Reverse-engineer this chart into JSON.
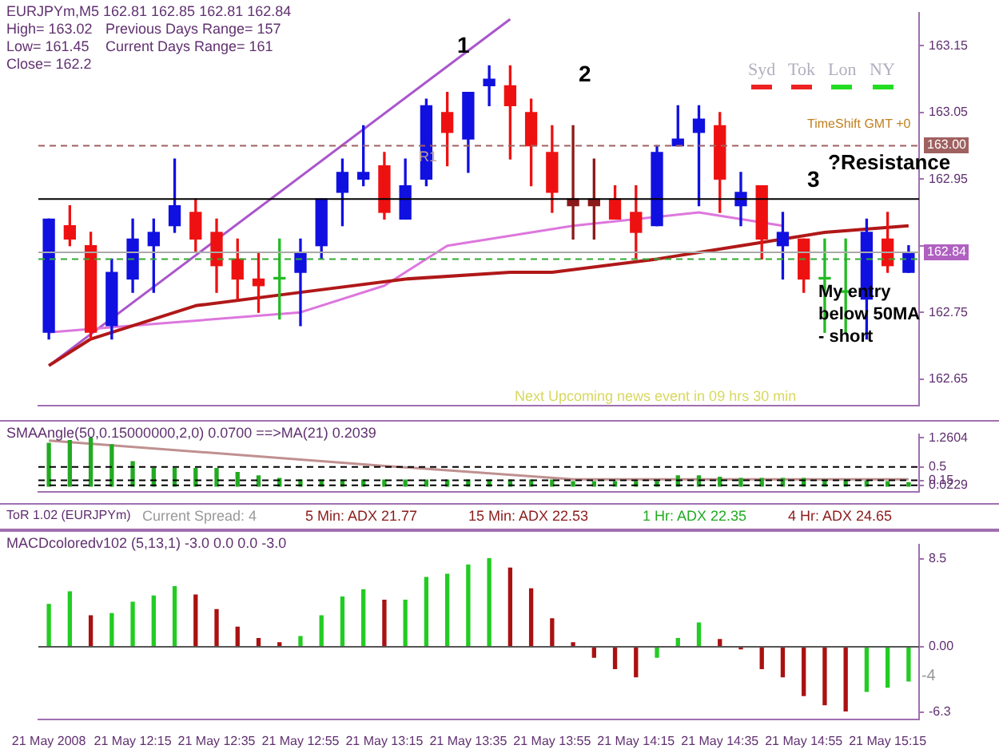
{
  "chart_data": [
    {
      "type": "candlestick",
      "categories": [
        null,
        null,
        null,
        null,
        null,
        null,
        null,
        null,
        null,
        null,
        null,
        null,
        null,
        null,
        null,
        null,
        null,
        null,
        null,
        null,
        null,
        null,
        null,
        null,
        null,
        null,
        null,
        null,
        null,
        null,
        null,
        null,
        null,
        null,
        null,
        null,
        null,
        null,
        null,
        null,
        null,
        null
      ],
      "ohlc": [
        [
          162.72,
          162.89,
          162.71,
          162.89
        ],
        [
          162.88,
          162.91,
          162.85,
          162.86
        ],
        [
          162.85,
          162.87,
          162.71,
          162.72
        ],
        [
          162.73,
          162.83,
          162.71,
          162.81
        ],
        [
          162.8,
          162.89,
          162.78,
          162.86
        ],
        [
          162.85,
          162.89,
          162.78,
          162.87
        ],
        [
          162.88,
          162.98,
          162.87,
          162.91
        ],
        [
          162.9,
          162.92,
          162.84,
          162.86
        ],
        [
          162.87,
          162.89,
          162.78,
          162.82
        ],
        [
          162.83,
          162.86,
          162.77,
          162.8
        ],
        [
          162.8,
          162.84,
          162.75,
          162.79
        ],
        [
          162.8,
          162.86,
          162.74,
          162.8
        ],
        [
          162.81,
          162.86,
          162.73,
          162.84
        ],
        [
          162.85,
          162.92,
          162.83,
          162.92
        ],
        [
          162.93,
          162.98,
          162.88,
          162.96
        ],
        [
          162.95,
          163.03,
          162.94,
          162.96
        ],
        [
          162.97,
          162.99,
          162.89,
          162.9
        ],
        [
          162.89,
          162.98,
          162.89,
          162.94
        ],
        [
          162.95,
          163.07,
          162.94,
          163.06
        ],
        [
          163.05,
          163.08,
          162.97,
          163.02
        ],
        [
          163.01,
          163.08,
          162.96,
          163.08
        ],
        [
          163.09,
          163.12,
          163.06,
          163.1
        ],
        [
          163.09,
          163.12,
          162.98,
          163.06
        ],
        [
          163.05,
          163.07,
          162.94,
          163.0
        ],
        [
          162.99,
          163.03,
          162.9,
          162.93
        ],
        [
          162.92,
          163.03,
          162.86,
          162.91
        ],
        [
          162.92,
          162.98,
          162.86,
          162.91
        ],
        [
          162.92,
          162.94,
          162.89,
          162.89
        ],
        [
          162.9,
          162.94,
          162.83,
          162.87
        ],
        [
          162.88,
          163.0,
          162.88,
          162.99
        ],
        [
          163.0,
          163.06,
          163.0,
          163.01
        ],
        [
          163.02,
          163.06,
          162.91,
          163.04
        ],
        [
          163.03,
          163.05,
          162.9,
          162.95
        ],
        [
          162.91,
          162.96,
          162.88,
          162.93
        ],
        [
          162.94,
          162.94,
          162.83,
          162.86
        ],
        [
          162.85,
          162.9,
          162.8,
          162.87
        ],
        [
          162.86,
          162.86,
          162.78,
          162.8
        ],
        [
          162.8,
          162.86,
          162.72,
          162.8
        ],
        [
          162.78,
          162.86,
          162.72,
          162.78
        ],
        [
          162.77,
          162.89,
          162.71,
          162.87
        ],
        [
          162.86,
          162.9,
          162.81,
          162.82
        ],
        [
          162.81,
          162.85,
          162.81,
          162.84
        ]
      ],
      "colors": [
        "#1010e0",
        "#ee1111",
        "#ee1111",
        "#1010e0",
        "#1010e0",
        "#1010e0",
        "#1010e0",
        "#ee1111",
        "#ee1111",
        "#ee1111",
        "#ee1111",
        "#22bb22",
        "#1010e0",
        "#1010e0",
        "#1010e0",
        "#1010e0",
        "#ee1111",
        "#1010e0",
        "#1010e0",
        "#ee1111",
        "#1010e0",
        "#1010e0",
        "#ee1111",
        "#ee1111",
        "#ee1111",
        "#8b1a1a",
        "#8b1a1a",
        "#ee1111",
        "#ee1111",
        "#1010e0",
        "#1010e0",
        "#1010e0",
        "#ee1111",
        "#1010e0",
        "#ee1111",
        "#1010e0",
        "#ee1111",
        "#22bb22",
        "#22bb22",
        "#1010e0",
        "#ee1111",
        "#1010e0"
      ],
      "series": [
        {
          "type": "line",
          "color": "#b01818",
          "values": [
            162.67,
            null,
            162.71,
            null,
            null,
            null,
            null,
            162.76,
            null,
            null,
            null,
            null,
            162.78,
            null,
            null,
            null,
            null,
            162.8,
            null,
            null,
            null,
            null,
            162.81,
            null,
            162.81,
            null,
            null,
            null,
            null,
            162.83,
            null,
            null,
            null,
            162.85,
            null,
            null,
            null,
            162.87,
            null,
            null,
            null,
            162.88
          ]
        },
        {
          "type": "line",
          "color": "#dd77dd",
          "values": [
            162.72,
            null,
            null,
            null,
            162.73,
            null,
            null,
            null,
            null,
            null,
            null,
            null,
            162.75,
            null,
            null,
            null,
            162.79,
            null,
            null,
            162.85,
            null,
            null,
            null,
            null,
            null,
            162.88,
            null,
            null,
            null,
            null,
            null,
            162.9,
            null,
            null,
            null,
            162.88,
            null,
            null,
            null,
            null,
            null,
            null
          ]
        },
        {
          "type": "line",
          "color": "#aa55cc",
          "values": [
            162.67,
            null,
            null,
            null,
            null,
            null,
            null,
            null,
            null,
            null,
            null,
            null,
            null,
            null,
            null,
            null,
            null,
            null,
            null,
            null,
            null,
            null,
            163.19,
            null,
            null,
            null,
            null,
            null,
            null,
            null,
            null,
            null,
            null,
            null,
            null,
            null,
            null,
            null,
            null,
            null,
            null,
            null
          ]
        }
      ],
      "ylim": [
        162.61,
        163.2
      ],
      "yticks": [
        162.65,
        162.75,
        {
          "value": 162.85,
          "label": null
        },
        162.95,
        163.05,
        163.15
      ],
      "tick_labels": "y",
      "ref_lines": [
        {
          "axis": "y",
          "value": 163.0,
          "label": "163.00",
          "color": "#a06060",
          "line_style": "dashed"
        },
        {
          "axis": "y",
          "value": 162.84,
          "label": "162.84",
          "color": "#aaaaaa",
          "line_style": "solid"
        },
        {
          "axis": "y",
          "value": 162.92,
          "label": null,
          "color": "#000000",
          "line_style": "solid"
        },
        {
          "axis": "y",
          "value": 162.83,
          "label": null,
          "color": "#33aa33",
          "line_style": "dashed"
        }
      ],
      "annotations": [
        "EURJPYm,M5  162.81 162.85 162.81 162.84",
        "High= 163.02",
        "Low= 161.45",
        "Close= 162.2",
        "Previous Days Range= 157",
        "Current Days Range= 161",
        "1",
        "2",
        "3",
        "?Resistance",
        "My entry below 50MA - short",
        "Syd",
        "Tok",
        "Lon",
        "NY",
        "TimeShift GMT +0",
        "R1",
        "Next Upcoming news event in 09 hrs 30 min"
      ]
    },
    {
      "type": "bar",
      "title": "SMAAngle(50,0.15000000,2,0) 0.0700 ==>MA(21) 0.2039",
      "categories": [
        null,
        null,
        null,
        null,
        null,
        null,
        null,
        null,
        null,
        null,
        null,
        null,
        null,
        null,
        null,
        null,
        null,
        null,
        null,
        null,
        null,
        null,
        null,
        null,
        null,
        null,
        null,
        null,
        null,
        null,
        null,
        null,
        null,
        null,
        null,
        null,
        null,
        null,
        null,
        null,
        null,
        null
      ],
      "series": [
        {
          "type": "bar",
          "color": "#22aa22",
          "values": [
            1.12,
            1.19,
            1.26,
            1.08,
            0.64,
            0.46,
            0.46,
            0.46,
            0.46,
            0.36,
            0.27,
            0.2,
            0.16,
            0.16,
            0.16,
            0.16,
            0.16,
            0.16,
            0.16,
            0.16,
            0.16,
            0.16,
            0.16,
            0.16,
            0.16,
            0.12,
            0.12,
            0.12,
            0.12,
            0.12,
            0.27,
            0.27,
            0.23,
            0.2,
            0.2,
            0.2,
            0.2,
            0.16,
            0.16,
            0.13,
            0.12,
            0.09
          ]
        },
        {
          "type": "line",
          "color": "#c09090",
          "values": [
            1.19,
            null,
            null,
            null,
            null,
            null,
            null,
            null,
            null,
            null,
            null,
            null,
            null,
            null,
            null,
            null,
            0.53,
            null,
            null,
            null,
            null,
            null,
            null,
            null,
            null,
            0.18,
            null,
            null,
            null,
            null,
            null,
            null,
            null,
            null,
            null,
            null,
            null,
            null,
            null,
            null,
            null,
            0.18
          ]
        }
      ],
      "ylim": [
        -0.15,
        1.36
      ],
      "yticks": [
        {
          "value": 0.0229,
          "label": "0.0229"
        },
        0.15,
        0.5,
        1.2604
      ],
      "tick_labels": "y",
      "ref_lines": [
        {
          "axis": "y",
          "value": 0.5,
          "label": null,
          "color": "#000000",
          "line_style": "dashed"
        },
        {
          "axis": "y",
          "value": 0.15,
          "label": null,
          "color": "#000000",
          "line_style": "dashed"
        },
        {
          "axis": "y",
          "value": 0.0229,
          "label": null,
          "color": "#000000",
          "line_style": "dashed"
        }
      ]
    },
    {
      "type": "other",
      "title": "ToR 1.02 (EURJPYm)",
      "annotations": [
        "Current Spread: 4",
        "5 Min: ADX 21.77",
        "15 Min: ADX 22.53",
        "1 Hr: ADX 22.35",
        "4 Hr: ADX 24.65"
      ]
    },
    {
      "type": "bar",
      "title": "MACDcoloredv102 (5,13,1) -3.0 0.0 0.0 -3.0",
      "categories": [
        "21 May 2008",
        null,
        null,
        null,
        "21 May 12:15",
        null,
        null,
        null,
        "21 May 12:35",
        null,
        null,
        null,
        "21 May 12:55",
        null,
        null,
        null,
        "21 May 13:15",
        null,
        null,
        null,
        "21 May 13:35",
        null,
        null,
        null,
        "21 May 13:55",
        null,
        null,
        null,
        "21 May 14:15",
        null,
        null,
        null,
        "21 May 14:35",
        null,
        null,
        null,
        "21 May 14:55",
        null,
        null,
        null,
        "21 May 15:15",
        null
      ],
      "values": [
        4.1,
        5.3,
        3.0,
        3.2,
        4.3,
        4.9,
        5.8,
        5.0,
        3.6,
        1.9,
        0.8,
        0.4,
        1.0,
        3.0,
        4.8,
        5.5,
        4.5,
        4.5,
        6.7,
        7.0,
        7.9,
        8.5,
        7.6,
        5.6,
        2.7,
        0.4,
        -1.0,
        -2.1,
        -2.9,
        -1.0,
        0.8,
        2.3,
        0.7,
        -0.2,
        -2.1,
        -2.9,
        -4.7,
        -5.6,
        -6.2,
        -4.3,
        -3.9,
        -3.3
      ],
      "colors": [
        "#22cc22",
        "#22cc22",
        "#aa1111",
        "#22cc22",
        "#22cc22",
        "#22cc22",
        "#22cc22",
        "#aa1111",
        "#aa1111",
        "#aa1111",
        "#aa1111",
        "#aa1111",
        "#22cc22",
        "#22cc22",
        "#22cc22",
        "#22cc22",
        "#aa1111",
        "#22cc22",
        "#22cc22",
        "#22cc22",
        "#22cc22",
        "#22cc22",
        "#aa1111",
        "#aa1111",
        "#aa1111",
        "#aa1111",
        "#aa1111",
        "#aa1111",
        "#aa1111",
        "#22cc22",
        "#22cc22",
        "#22cc22",
        "#aa1111",
        "#aa1111",
        "#aa1111",
        "#aa1111",
        "#aa1111",
        "#aa1111",
        "#aa1111",
        "#22cc22",
        "#22cc22",
        "#22cc22"
      ],
      "ylim": [
        -7.0,
        9.9
      ],
      "yticks": [
        -6.3,
        {
          "value": 0,
          "label": "0.00"
        },
        8.5
      ],
      "ref_lines": [
        {
          "axis": "y",
          "value": 0,
          "label": null,
          "color": "#555555",
          "line_style": "solid"
        }
      ],
      "annotations": [
        "-4"
      ]
    }
  ]
}
